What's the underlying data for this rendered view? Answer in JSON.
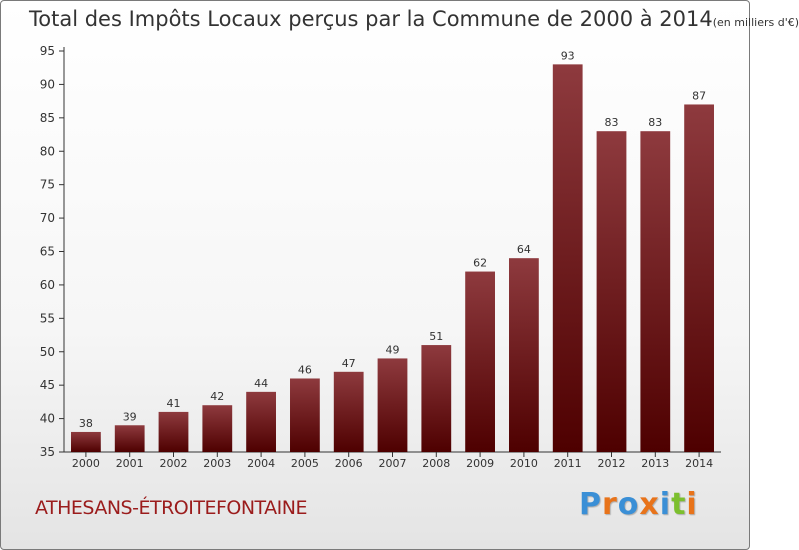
{
  "title": "Total des Impôts Locaux perçus par la Commune de 2000 à 2014",
  "title_unit": "(en milliers d'€)",
  "commune": "ATHESANS-ÉTROITEFONTAINE",
  "logo_text": "Proxiti",
  "logo_colors": [
    "#3a8fd6",
    "#e8731a",
    "#3a8fd6",
    "#e8731a",
    "#3a8fd6",
    "#7cbf2e",
    "#e8731a"
  ],
  "colors": {
    "bar_light": "#8e3a3e",
    "bar_dark": "#4e0000",
    "commune_text": "#9b1c1c"
  },
  "chart_data": {
    "type": "bar",
    "title": "Total des Impôts Locaux perçus par la Commune de 2000 à 2014 (en milliers d'€)",
    "categories": [
      "2000",
      "2001",
      "2002",
      "2003",
      "2004",
      "2005",
      "2006",
      "2007",
      "2008",
      "2009",
      "2010",
      "2011",
      "2012",
      "2013",
      "2014"
    ],
    "values": [
      38,
      39,
      41,
      42,
      44,
      46,
      47,
      49,
      51,
      62,
      64,
      93,
      83,
      83,
      87
    ],
    "xlabel": "",
    "ylabel": "",
    "ylim": [
      35,
      95
    ],
    "yticks": [
      35,
      40,
      45,
      50,
      55,
      60,
      65,
      70,
      75,
      80,
      85,
      90,
      95
    ],
    "grid": false
  }
}
